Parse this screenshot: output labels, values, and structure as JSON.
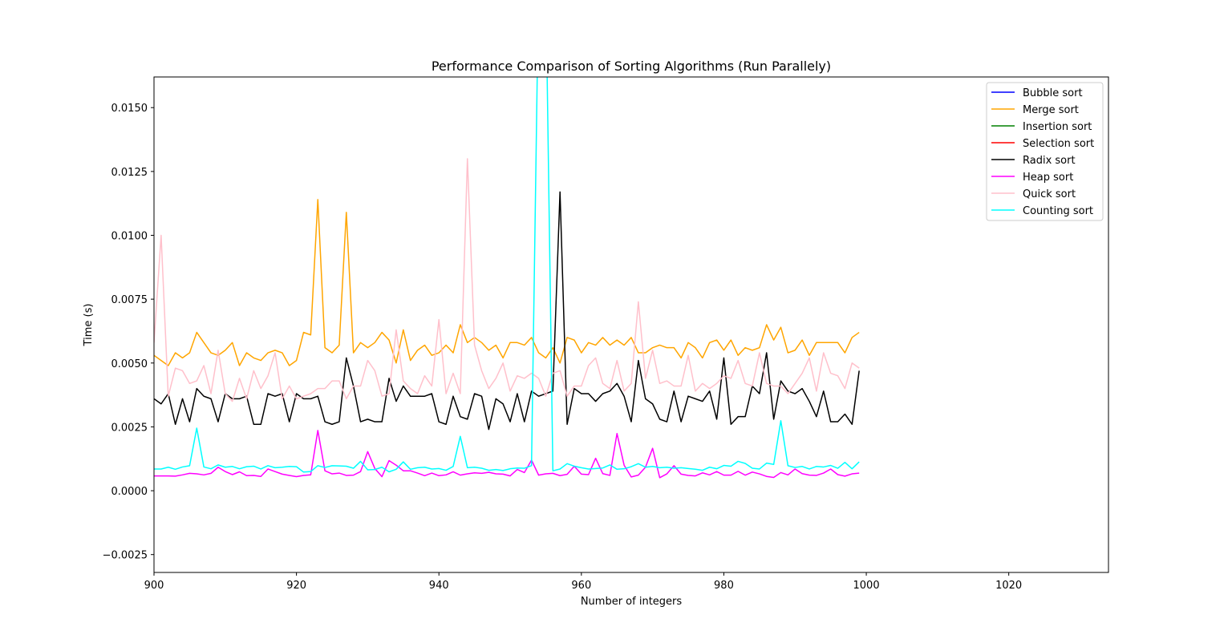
{
  "chart_data": {
    "type": "line",
    "title": "Performance Comparison of Sorting Algorithms (Run Parallely)",
    "xlabel": "Number of integers",
    "ylabel": "Time (s)",
    "xlim": [
      900,
      1034
    ],
    "ylim": [
      -0.0032,
      0.0162
    ],
    "x_ticks": [
      900,
      920,
      940,
      960,
      980,
      1000,
      1020
    ],
    "x_tick_labels": [
      "900",
      "920",
      "940",
      "960",
      "980",
      "1000",
      "1020"
    ],
    "y_ticks": [
      -0.0025,
      0.0,
      0.0025,
      0.005,
      0.0075,
      0.01,
      0.0125,
      0.015
    ],
    "y_tick_labels": [
      "−0.0025",
      "0.0000",
      "0.0025",
      "0.0050",
      "0.0075",
      "0.0100",
      "0.0125",
      "0.0150"
    ],
    "grid": false,
    "legend_position": "top-right",
    "x_start": 900,
    "x_step": 1,
    "series": [
      {
        "name": "Bubble sort",
        "color": "#0000ff",
        "values": []
      },
      {
        "name": "Merge sort",
        "color": "#ffa500",
        "values": [
          0.0053,
          0.0051,
          0.0049,
          0.0054,
          0.0052,
          0.0054,
          0.0062,
          0.0058,
          0.0054,
          0.0053,
          0.0055,
          0.0058,
          0.0049,
          0.0054,
          0.0052,
          0.0051,
          0.0054,
          0.0055,
          0.0054,
          0.0049,
          0.0051,
          0.0062,
          0.0061,
          0.0114,
          0.0056,
          0.0054,
          0.0057,
          0.0109,
          0.0054,
          0.0058,
          0.0056,
          0.0058,
          0.0062,
          0.0059,
          0.005,
          0.0063,
          0.0051,
          0.0055,
          0.0057,
          0.0053,
          0.0054,
          0.0057,
          0.0054,
          0.0065,
          0.0058,
          0.006,
          0.0058,
          0.0055,
          0.0057,
          0.0052,
          0.0058,
          0.0058,
          0.0057,
          0.006,
          0.0054,
          0.0052,
          0.0056,
          0.005,
          0.006,
          0.0059,
          0.0054,
          0.0058,
          0.0057,
          0.006,
          0.0057,
          0.0059,
          0.0057,
          0.006,
          0.0054,
          0.0054,
          0.0056,
          0.0057,
          0.0056,
          0.0056,
          0.0052,
          0.0058,
          0.0056,
          0.0052,
          0.0058,
          0.0059,
          0.0055,
          0.0059,
          0.0053,
          0.0056,
          0.0055,
          0.0056,
          0.0065,
          0.0059,
          0.0064,
          0.0054,
          0.0055,
          0.0059,
          0.0053,
          0.0058,
          0.0058,
          0.0058,
          0.0058,
          0.0054,
          0.006,
          0.0062
        ]
      },
      {
        "name": "Insertion sort",
        "color": "#008000",
        "values": []
      },
      {
        "name": "Selection sort",
        "color": "#ff0000",
        "values": []
      },
      {
        "name": "Radix sort",
        "color": "#000000",
        "values": [
          0.0036,
          0.0034,
          0.0038,
          0.0026,
          0.0036,
          0.0027,
          0.004,
          0.0037,
          0.0036,
          0.0027,
          0.0038,
          0.0036,
          0.0036,
          0.0037,
          0.0026,
          0.0026,
          0.0038,
          0.0037,
          0.0038,
          0.0027,
          0.0038,
          0.0036,
          0.0036,
          0.0037,
          0.0027,
          0.0026,
          0.0027,
          0.0052,
          0.0041,
          0.0027,
          0.0028,
          0.0027,
          0.0027,
          0.0044,
          0.0035,
          0.0041,
          0.0037,
          0.0037,
          0.0037,
          0.0038,
          0.0027,
          0.0026,
          0.0037,
          0.0029,
          0.0028,
          0.0038,
          0.0037,
          0.0024,
          0.0036,
          0.0034,
          0.0027,
          0.0038,
          0.0027,
          0.0039,
          0.0037,
          0.0038,
          0.0039,
          0.0117,
          0.0026,
          0.004,
          0.0038,
          0.0038,
          0.0035,
          0.0038,
          0.0039,
          0.0042,
          0.0037,
          0.0027,
          0.0051,
          0.0036,
          0.0034,
          0.0028,
          0.0027,
          0.0039,
          0.0027,
          0.0037,
          0.0036,
          0.0035,
          0.0039,
          0.0028,
          0.0052,
          0.0026,
          0.0029,
          0.0029,
          0.0041,
          0.0038,
          0.0054,
          0.0028,
          0.0043,
          0.0039,
          0.0038,
          0.004,
          0.0035,
          0.0029,
          0.0039,
          0.0027,
          0.0027,
          0.003,
          0.0026,
          0.0047
        ]
      },
      {
        "name": "Heap sort",
        "color": "#ff00ff",
        "values": [
          0.00058,
          0.00058,
          0.00058,
          0.00057,
          0.00062,
          0.00068,
          0.00066,
          0.00062,
          0.00068,
          0.00092,
          0.00075,
          0.00063,
          0.00074,
          0.00059,
          0.0006,
          0.00056,
          0.00085,
          0.00075,
          0.00065,
          0.0006,
          0.00055,
          0.0006,
          0.00062,
          0.00236,
          0.00078,
          0.00066,
          0.00069,
          0.0006,
          0.00061,
          0.00075,
          0.00153,
          0.00087,
          0.00055,
          0.00118,
          0.001,
          0.00078,
          0.00078,
          0.00069,
          0.00059,
          0.00069,
          0.00059,
          0.00062,
          0.00074,
          0.00061,
          0.00066,
          0.0007,
          0.00068,
          0.00072,
          0.00066,
          0.00065,
          0.00058,
          0.00083,
          0.00071,
          0.0012,
          0.00061,
          0.00066,
          0.00068,
          0.00059,
          0.00064,
          0.00096,
          0.00065,
          0.00063,
          0.00127,
          0.00067,
          0.0006,
          0.00224,
          0.001,
          0.00054,
          0.00061,
          0.00092,
          0.00166,
          0.00051,
          0.00066,
          0.00098,
          0.00065,
          0.0006,
          0.00058,
          0.0007,
          0.00062,
          0.00075,
          0.00061,
          0.00061,
          0.00076,
          0.00061,
          0.00073,
          0.00066,
          0.00056,
          0.00052,
          0.00071,
          0.00062,
          0.00085,
          0.00067,
          0.00061,
          0.0006,
          0.00069,
          0.00085,
          0.00063,
          0.00057,
          0.00066,
          0.00069
        ]
      },
      {
        "name": "Quick sort",
        "color": "#ffc0cb",
        "values": [
          0.0058,
          0.01,
          0.0037,
          0.0048,
          0.0047,
          0.0042,
          0.0043,
          0.0049,
          0.0038,
          0.0055,
          0.0038,
          0.0035,
          0.0044,
          0.0036,
          0.0047,
          0.004,
          0.0045,
          0.0054,
          0.0036,
          0.0041,
          0.0036,
          0.0037,
          0.0038,
          0.004,
          0.004,
          0.0043,
          0.0043,
          0.0036,
          0.0041,
          0.0041,
          0.0051,
          0.0047,
          0.0037,
          0.0038,
          0.0063,
          0.0043,
          0.004,
          0.0038,
          0.0045,
          0.0041,
          0.0067,
          0.0038,
          0.0046,
          0.0038,
          0.013,
          0.0057,
          0.0047,
          0.004,
          0.0044,
          0.005,
          0.0039,
          0.0045,
          0.0044,
          0.0046,
          0.0044,
          0.0037,
          0.0046,
          0.0047,
          0.0037,
          0.0041,
          0.0041,
          0.0049,
          0.0052,
          0.0042,
          0.004,
          0.0051,
          0.0039,
          0.0042,
          0.0074,
          0.0044,
          0.0055,
          0.0042,
          0.0043,
          0.0041,
          0.0041,
          0.0053,
          0.0039,
          0.0042,
          0.004,
          0.0042,
          0.0045,
          0.0044,
          0.0051,
          0.0042,
          0.0041,
          0.0054,
          0.0042,
          0.0041,
          0.0041,
          0.0038,
          0.0042,
          0.0046,
          0.0052,
          0.0039,
          0.0054,
          0.0046,
          0.0045,
          0.004,
          0.005,
          0.0048
        ]
      },
      {
        "name": "Counting sort",
        "color": "#00ffff",
        "values": [
          0.00085,
          0.00085,
          0.00092,
          0.00084,
          0.00093,
          0.00098,
          0.00245,
          0.00093,
          0.00086,
          0.00101,
          0.00092,
          0.00095,
          0.00086,
          0.00094,
          0.00096,
          0.00085,
          0.00098,
          0.0009,
          0.00092,
          0.00095,
          0.00094,
          0.00073,
          0.00075,
          0.00098,
          0.00091,
          0.00098,
          0.00097,
          0.00096,
          0.00088,
          0.00115,
          0.00082,
          0.00083,
          0.00092,
          0.00074,
          0.00084,
          0.00113,
          0.00084,
          0.0009,
          0.00092,
          0.00085,
          0.00087,
          0.0008,
          0.00095,
          0.00213,
          0.0009,
          0.00092,
          0.00088,
          0.0008,
          0.00083,
          0.00079,
          0.00086,
          0.00089,
          0.00088,
          0.00098,
          0.02,
          0.02,
          0.00078,
          0.00085,
          0.00106,
          0.00096,
          0.0009,
          0.00085,
          0.00087,
          0.00089,
          0.00101,
          0.00084,
          0.00086,
          0.00094,
          0.00106,
          0.00092,
          0.00095,
          0.0009,
          0.00092,
          0.00088,
          0.0009,
          0.00087,
          0.00084,
          0.0008,
          0.00092,
          0.00086,
          0.00099,
          0.00096,
          0.00115,
          0.00107,
          0.00088,
          0.00085,
          0.00108,
          0.00103,
          0.00274,
          0.00098,
          0.00091,
          0.00095,
          0.00085,
          0.00095,
          0.00093,
          0.00099,
          0.00088,
          0.00111,
          0.00086,
          0.00113
        ]
      }
    ]
  }
}
